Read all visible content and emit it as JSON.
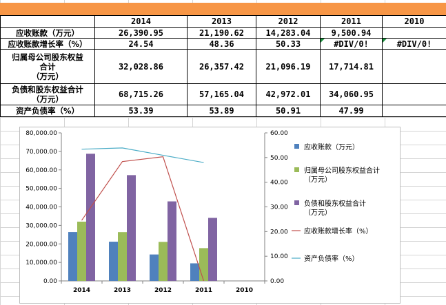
{
  "table": {
    "years": [
      "2014",
      "2013",
      "2012",
      "2011",
      "2010"
    ],
    "rows": [
      {
        "label": "应收账款（万元）",
        "values": [
          "26,390.95",
          "21,190.62",
          "14,283.04",
          "9,500.94",
          ""
        ]
      },
      {
        "label": "应收账款增长率（%）",
        "values": [
          "24.54",
          "48.36",
          "50.33",
          "#DIV/0!",
          "#DIV/0!"
        ]
      },
      {
        "label_lines": [
          "归属母公司股东权益",
          "合计",
          "（万元）"
        ],
        "values": [
          "32,028.86",
          "26,357.42",
          "21,096.19",
          "17,714.81",
          ""
        ]
      },
      {
        "label_lines": [
          "负债和股东权益合计",
          "（万元）"
        ],
        "values": [
          "68,715.26",
          "57,165.04",
          "42,972.01",
          "34,060.95",
          ""
        ]
      },
      {
        "label": "资产负债率（%）",
        "values": [
          "53.39",
          "53.89",
          "50.91",
          "47.99",
          ""
        ]
      }
    ]
  },
  "chart_data": {
    "type": "bar",
    "categories": [
      "2014",
      "2013",
      "2012",
      "2011",
      "2010"
    ],
    "y_left": {
      "ylim": [
        0,
        80000
      ],
      "ticks": [
        "0.00",
        "10,000.00",
        "20,000.00",
        "30,000.00",
        "40,000.00",
        "50,000.00",
        "60,000.00",
        "70,000.00",
        "80,000.00"
      ]
    },
    "y_right": {
      "ylim": [
        0,
        60
      ],
      "ticks": [
        "0.00",
        "10.00",
        "20.00",
        "30.00",
        "40.00",
        "50.00",
        "60.00"
      ]
    },
    "series": [
      {
        "name": "应收账款（万元）",
        "kind": "bar",
        "axis": "left",
        "color": "#4f81bd",
        "values": [
          26390.95,
          21190.62,
          14283.04,
          9500.94,
          null
        ]
      },
      {
        "name": "归属母公司股东权益合计（万元）",
        "kind": "bar",
        "axis": "left",
        "color": "#9bbb59",
        "values": [
          32028.86,
          26357.42,
          21096.19,
          17714.81,
          null
        ]
      },
      {
        "name": "负债和股东权益合计（万元）",
        "kind": "bar",
        "axis": "left",
        "color": "#8064a2",
        "values": [
          68715.26,
          57165.04,
          42972.01,
          34060.95,
          null
        ]
      },
      {
        "name": "应收账款增长率（%）",
        "kind": "line",
        "axis": "right",
        "color": "#c0504d",
        "values": [
          24.54,
          48.36,
          50.33,
          0,
          null
        ]
      },
      {
        "name": "资产负债率（%）",
        "kind": "line",
        "axis": "right",
        "color": "#4bacc6",
        "values": [
          53.39,
          53.89,
          50.91,
          47.99,
          null
        ]
      }
    ],
    "legend_labels": [
      [
        "应收账款（万元）"
      ],
      [
        "归属母公司股东权益合计",
        "（万元）"
      ],
      [
        "负债和股东权益合计",
        "（万元）"
      ],
      [
        "应收账款增长率（%）"
      ],
      [
        "资产负债率（%）"
      ]
    ],
    "legend_position": "right"
  }
}
